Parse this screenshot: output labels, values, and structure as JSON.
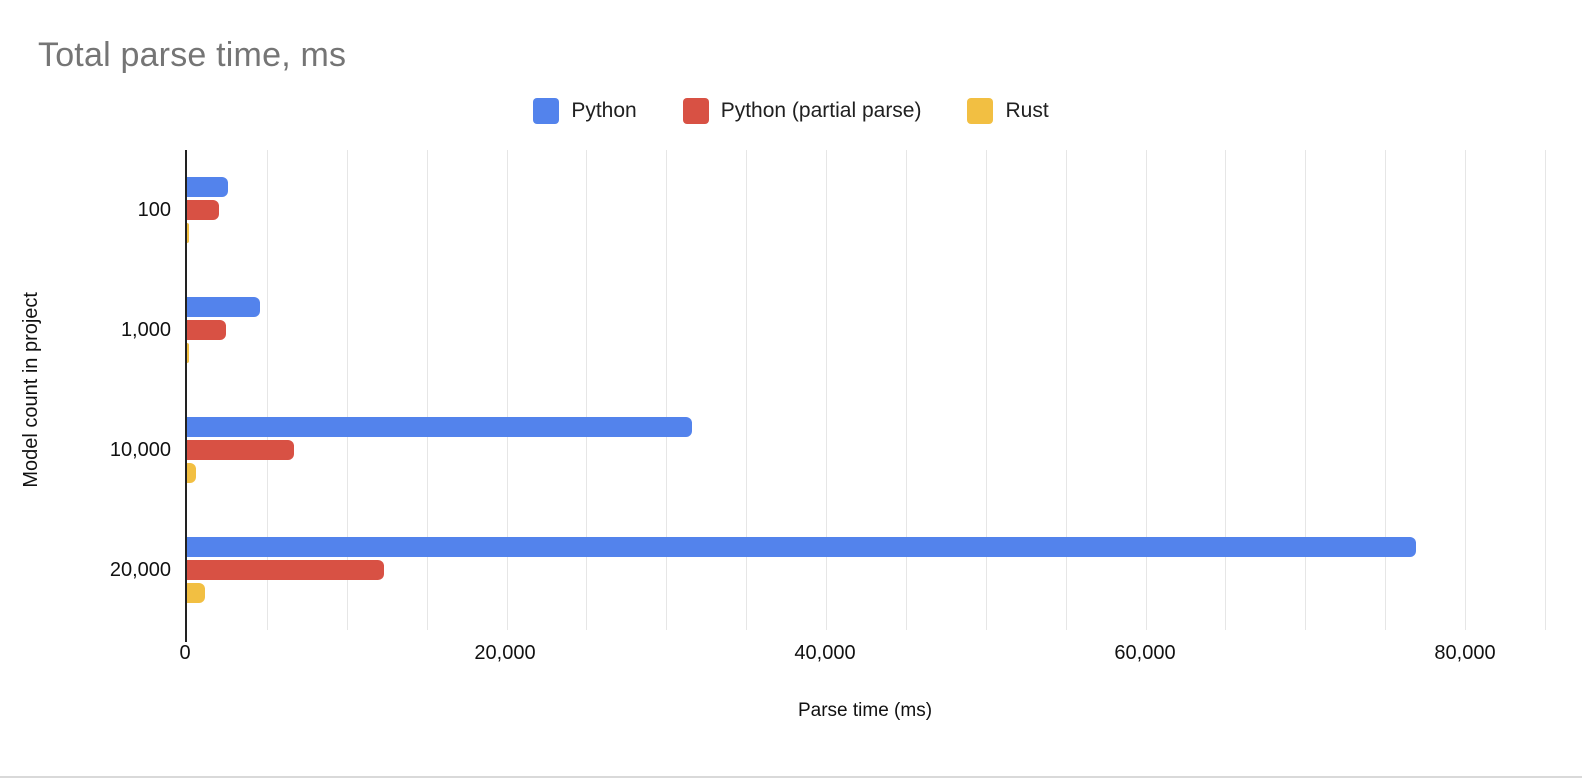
{
  "title": "Total parse time, ms",
  "colors": {
    "title_text": "#757575",
    "axis_line": "#222222",
    "gridline": "#e6e6e6",
    "series_python": "#5383EC",
    "series_python_partial": "#D85144",
    "series_rust": "#F2BF42"
  },
  "legend": {
    "position": "top",
    "items": [
      {
        "label": "Python",
        "color": "#5383EC"
      },
      {
        "label": "Python (partial parse)",
        "color": "#D85144"
      },
      {
        "label": "Rust",
        "color": "#F2BF42"
      }
    ]
  },
  "chart_data": {
    "type": "bar",
    "orientation": "horizontal",
    "title": "Total parse time, ms",
    "xlabel": "Parse time (ms)",
    "ylabel": "Model count in project",
    "categories": [
      "100",
      "1,000",
      "10,000",
      "20,000"
    ],
    "series": [
      {
        "name": "Python",
        "color": "#5383EC",
        "values": [
          2550,
          4550,
          31600,
          76900
        ]
      },
      {
        "name": "Python (partial parse)",
        "color": "#D85144",
        "values": [
          2000,
          2450,
          6700,
          12300
        ]
      },
      {
        "name": "Rust",
        "color": "#F2BF42",
        "values": [
          100,
          100,
          550,
          1150
        ]
      }
    ],
    "xlim": [
      0,
      85000
    ],
    "grid": true,
    "gridline_interval": 5000,
    "legend_position": "top",
    "x_ticks": [
      {
        "value": 0,
        "label": "0"
      },
      {
        "value": 20000,
        "label": "20,000"
      },
      {
        "value": 40000,
        "label": "40,000"
      },
      {
        "value": 60000,
        "label": "60,000"
      },
      {
        "value": 80000,
        "label": "80,000"
      }
    ]
  }
}
